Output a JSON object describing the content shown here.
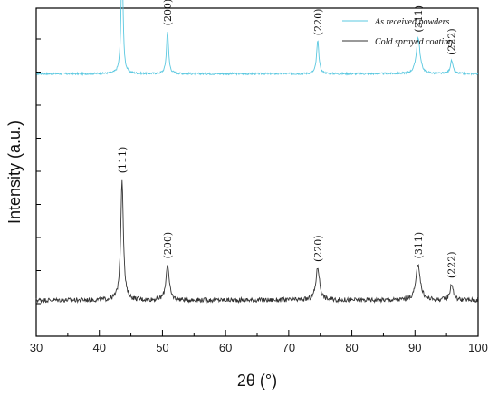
{
  "chart_data": {
    "type": "line",
    "xlabel": "2θ (°)",
    "ylabel": "Intensity (a.u.)",
    "xlim": [
      30,
      100
    ],
    "x_ticks": [
      "30",
      "40",
      "50",
      "60",
      "70",
      "80",
      "90",
      "100"
    ],
    "y_tick_labels": "none",
    "grid": false,
    "legend_position": "top-right",
    "series": [
      {
        "name": "As received powders",
        "color": "#5bc8e0",
        "baseline": 0.8,
        "noise": 0.003,
        "peaks": [
          {
            "x": 43.6,
            "height": 0.37,
            "width": 0.18,
            "label": "(111)"
          },
          {
            "x": 50.8,
            "height": 0.13,
            "width": 0.2,
            "label": "(200)"
          },
          {
            "x": 74.6,
            "height": 0.1,
            "width": 0.22,
            "label": "(220)"
          },
          {
            "x": 90.5,
            "height": 0.11,
            "width": 0.35,
            "label": "(311)"
          },
          {
            "x": 95.8,
            "height": 0.04,
            "width": 0.25,
            "label": "(222)"
          }
        ]
      },
      {
        "name": "Cold sprayed coating",
        "color": "#333333",
        "baseline": 0.11,
        "noise": 0.007,
        "peaks": [
          {
            "x": 43.6,
            "height": 0.37,
            "width": 0.25,
            "label": "(111)"
          },
          {
            "x": 50.8,
            "height": 0.11,
            "width": 0.3,
            "label": "(200)"
          },
          {
            "x": 74.6,
            "height": 0.1,
            "width": 0.35,
            "label": "(220)"
          },
          {
            "x": 90.5,
            "height": 0.11,
            "width": 0.4,
            "label": "(311)"
          },
          {
            "x": 95.8,
            "height": 0.05,
            "width": 0.3,
            "label": "(222)"
          }
        ]
      }
    ]
  }
}
